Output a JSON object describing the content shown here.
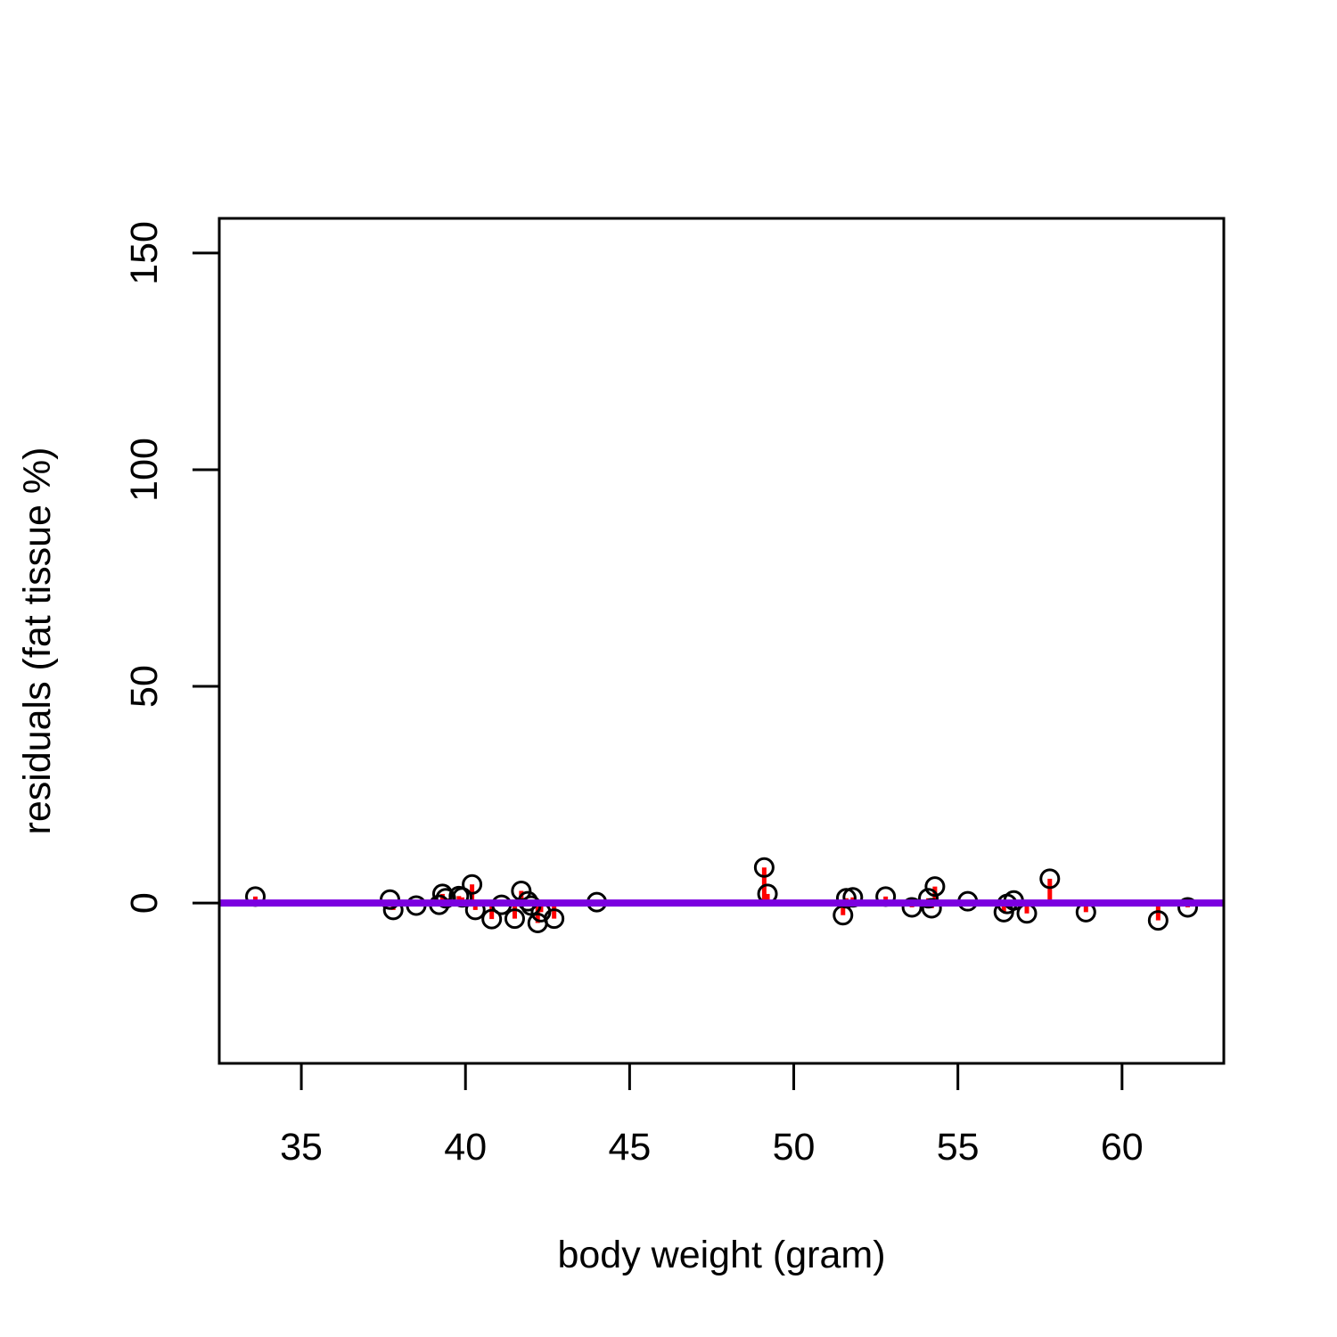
{
  "chart_data": {
    "type": "scatter",
    "title": "",
    "xlabel": "body weight (gram)",
    "ylabel": "residuals (fat tissue %)",
    "xlim": [
      32.5,
      63.1
    ],
    "ylim": [
      -37,
      158
    ],
    "xticks": [
      35,
      40,
      45,
      50,
      55,
      60
    ],
    "yticks": [
      0,
      50,
      100,
      150
    ],
    "reference_line": {
      "y": 0,
      "color": "#7b00e0"
    },
    "residual_color": "#ff0000",
    "point_color": "#000000",
    "points": [
      {
        "x": 33.6,
        "y": 1.5
      },
      {
        "x": 37.7,
        "y": 0.8
      },
      {
        "x": 37.8,
        "y": -1.6
      },
      {
        "x": 38.5,
        "y": -0.6
      },
      {
        "x": 39.2,
        "y": -0.4
      },
      {
        "x": 39.3,
        "y": 2.1
      },
      {
        "x": 39.4,
        "y": 1.1
      },
      {
        "x": 39.8,
        "y": 1.6
      },
      {
        "x": 39.9,
        "y": 1.3
      },
      {
        "x": 40.2,
        "y": 4.3
      },
      {
        "x": 40.3,
        "y": -1.6
      },
      {
        "x": 40.8,
        "y": -3.7
      },
      {
        "x": 41.1,
        "y": -0.4
      },
      {
        "x": 41.5,
        "y": -3.6
      },
      {
        "x": 41.7,
        "y": 2.8
      },
      {
        "x": 41.9,
        "y": 0.4
      },
      {
        "x": 42.0,
        "y": -0.6
      },
      {
        "x": 42.2,
        "y": -4.6
      },
      {
        "x": 42.3,
        "y": -2.1
      },
      {
        "x": 42.7,
        "y": -3.6
      },
      {
        "x": 44.0,
        "y": 0.2
      },
      {
        "x": 49.1,
        "y": 8.2
      },
      {
        "x": 49.2,
        "y": 2.1
      },
      {
        "x": 51.5,
        "y": -2.8
      },
      {
        "x": 51.6,
        "y": 1.1
      },
      {
        "x": 51.8,
        "y": 1.3
      },
      {
        "x": 52.8,
        "y": 1.5
      },
      {
        "x": 53.6,
        "y": -1.0
      },
      {
        "x": 54.1,
        "y": 1.1
      },
      {
        "x": 54.2,
        "y": -1.2
      },
      {
        "x": 54.3,
        "y": 3.8
      },
      {
        "x": 55.3,
        "y": 0.4
      },
      {
        "x": 56.4,
        "y": -2.1
      },
      {
        "x": 56.5,
        "y": -0.2
      },
      {
        "x": 56.7,
        "y": 0.6
      },
      {
        "x": 57.1,
        "y": -2.4
      },
      {
        "x": 57.8,
        "y": 5.6
      },
      {
        "x": 58.9,
        "y": -2.1
      },
      {
        "x": 61.1,
        "y": -4.0
      },
      {
        "x": 62.0,
        "y": -1.0
      }
    ]
  }
}
